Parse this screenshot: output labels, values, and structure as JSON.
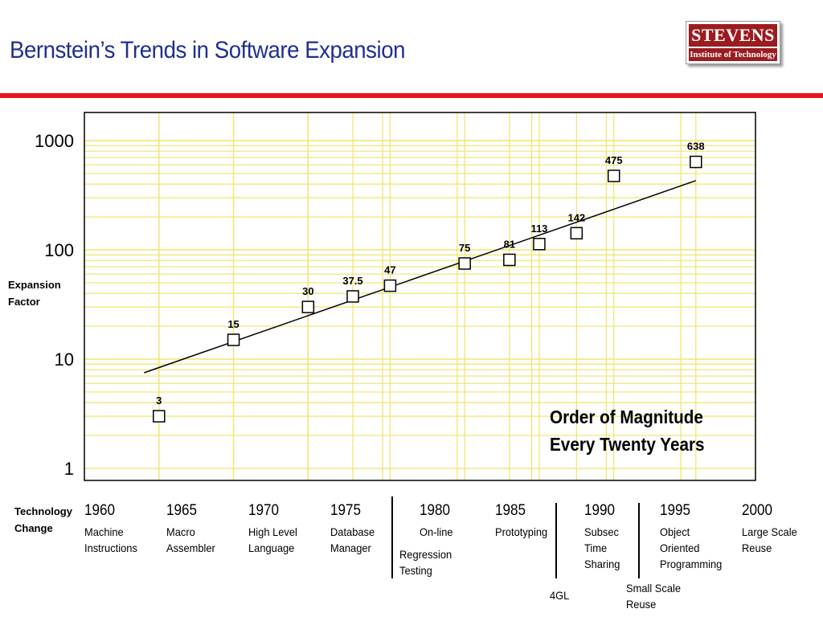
{
  "title": "Bernstein’s Trends in Software Expansion",
  "logo": {
    "top": "STEVENS",
    "bottom": "Institute of Technology"
  },
  "y_axis_label": [
    "Expansion",
    "Factor"
  ],
  "technology_label": [
    "Technology",
    "Change"
  ],
  "annotation": [
    "Order of Magnitude",
    "Every Twenty Years"
  ],
  "eras": [
    {
      "year": "1960",
      "lines": [
        "Machine",
        "Instructions"
      ]
    },
    {
      "year": "1965",
      "lines": [
        "Macro",
        "Assembler"
      ]
    },
    {
      "year": "1970",
      "lines": [
        "High Level",
        "Language"
      ]
    },
    {
      "year": "1975",
      "lines": [
        "Database",
        "Manager"
      ]
    },
    {
      "year": "1980",
      "lines": [
        "On-line"
      ]
    },
    {
      "year": "1985",
      "lines": [
        "Prototyping"
      ]
    },
    {
      "year": "1990",
      "lines": [
        "Subsec",
        "Time",
        "Sharing"
      ]
    },
    {
      "year": "1995",
      "lines": [
        "Object",
        "Oriented",
        "Programming"
      ]
    },
    {
      "year": "2000",
      "lines": [
        "Large Scale",
        "Reuse"
      ]
    }
  ],
  "extra_labels": {
    "regression_testing": [
      "Regression",
      "Testing"
    ],
    "fourgl": "4GL",
    "small_scale_reuse": [
      "Small Scale",
      "Reuse"
    ]
  },
  "chart_data": {
    "type": "scatter",
    "title": "Bernstein’s Trends in Software Expansion",
    "xlabel": "Technology Change",
    "ylabel": "Expansion Factor",
    "y_scale": "log",
    "xlim": [
      1955,
      2000
    ],
    "ylim": [
      1,
      1500
    ],
    "yticks": [
      "1",
      "10",
      "100",
      "1000"
    ],
    "xticks": [
      "1960",
      "1965",
      "1970",
      "1975",
      "1980",
      "1985",
      "1990",
      "1995",
      "2000"
    ],
    "grid": true,
    "points": [
      {
        "x": 1960,
        "y": 3,
        "label": "3"
      },
      {
        "x": 1965,
        "y": 15,
        "label": "15"
      },
      {
        "x": 1970,
        "y": 30,
        "label": "30"
      },
      {
        "x": 1973,
        "y": 37.5,
        "label": "37.5"
      },
      {
        "x": 1975.5,
        "y": 47,
        "label": "47"
      },
      {
        "x": 1980.5,
        "y": 75,
        "label": "75"
      },
      {
        "x": 1983.5,
        "y": 81,
        "label": "81"
      },
      {
        "x": 1985.5,
        "y": 113,
        "label": "113"
      },
      {
        "x": 1988,
        "y": 142,
        "label": "142"
      },
      {
        "x": 1990.5,
        "y": 475,
        "label": "475"
      },
      {
        "x": 1996,
        "y": 638,
        "label": "638"
      }
    ],
    "trend_line": {
      "from": {
        "x": 1959,
        "y": 7.5
      },
      "to": {
        "x": 1996,
        "y": 430
      }
    }
  }
}
